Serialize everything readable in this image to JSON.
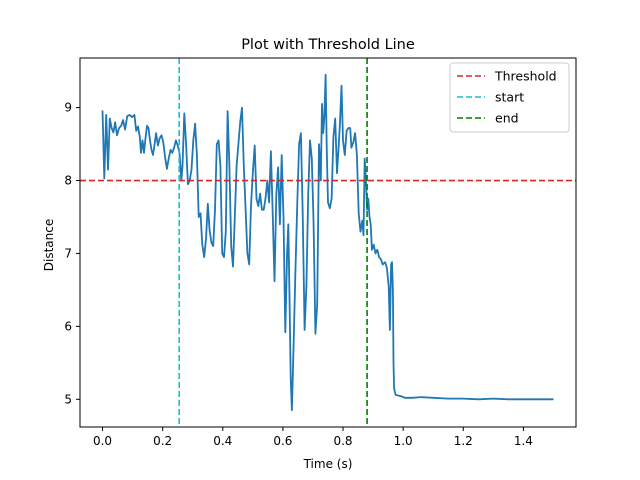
{
  "chart_data": {
    "type": "line",
    "title": "Plot with Threshold Line",
    "xlabel": "Time (s)",
    "ylabel": "Distance",
    "xlim": [
      -0.075,
      1.575
    ],
    "ylim": [
      4.62,
      9.68
    ],
    "xticks": [
      0.0,
      0.2,
      0.4,
      0.6,
      0.8,
      1.0,
      1.2,
      1.4
    ],
    "xtick_labels": [
      "0.0",
      "0.2",
      "0.4",
      "0.6",
      "0.8",
      "1.0",
      "1.2",
      "1.4"
    ],
    "yticks": [
      5,
      6,
      7,
      8,
      9
    ],
    "ytick_labels": [
      "5",
      "6",
      "7",
      "8",
      "9"
    ],
    "grid": false,
    "legend_position": "top-right",
    "series": [
      {
        "color": "#1f77b4",
        "style": "solid",
        "points": [
          [
            0.0,
            8.96
          ],
          [
            0.006,
            8.03
          ],
          [
            0.012,
            8.9
          ],
          [
            0.018,
            8.15
          ],
          [
            0.024,
            8.85
          ],
          [
            0.03,
            8.72
          ],
          [
            0.036,
            8.66
          ],
          [
            0.042,
            8.8
          ],
          [
            0.048,
            8.62
          ],
          [
            0.055,
            8.72
          ],
          [
            0.062,
            8.75
          ],
          [
            0.068,
            8.83
          ],
          [
            0.075,
            8.7
          ],
          [
            0.082,
            8.88
          ],
          [
            0.09,
            8.9
          ],
          [
            0.098,
            8.87
          ],
          [
            0.106,
            8.9
          ],
          [
            0.112,
            8.68
          ],
          [
            0.118,
            8.74
          ],
          [
            0.124,
            8.6
          ],
          [
            0.128,
            8.38
          ],
          [
            0.133,
            8.55
          ],
          [
            0.138,
            8.38
          ],
          [
            0.143,
            8.58
          ],
          [
            0.148,
            8.75
          ],
          [
            0.153,
            8.72
          ],
          [
            0.158,
            8.55
          ],
          [
            0.163,
            8.42
          ],
          [
            0.168,
            8.35
          ],
          [
            0.173,
            8.5
          ],
          [
            0.178,
            8.65
          ],
          [
            0.184,
            8.48
          ],
          [
            0.19,
            8.58
          ],
          [
            0.196,
            8.62
          ],
          [
            0.202,
            8.52
          ],
          [
            0.208,
            8.32
          ],
          [
            0.214,
            8.16
          ],
          [
            0.22,
            8.3
          ],
          [
            0.226,
            8.42
          ],
          [
            0.232,
            8.38
          ],
          [
            0.238,
            8.45
          ],
          [
            0.244,
            8.55
          ],
          [
            0.25,
            8.48
          ],
          [
            0.256,
            8.38
          ],
          [
            0.262,
            8.0
          ],
          [
            0.266,
            8.2
          ],
          [
            0.272,
            8.92
          ],
          [
            0.278,
            8.5
          ],
          [
            0.284,
            7.95
          ],
          [
            0.29,
            8.0
          ],
          [
            0.296,
            8.15
          ],
          [
            0.302,
            8.55
          ],
          [
            0.308,
            8.78
          ],
          [
            0.314,
            8.35
          ],
          [
            0.32,
            7.5
          ],
          [
            0.326,
            7.55
          ],
          [
            0.332,
            7.12
          ],
          [
            0.338,
            6.95
          ],
          [
            0.344,
            7.2
          ],
          [
            0.35,
            7.68
          ],
          [
            0.356,
            7.32
          ],
          [
            0.362,
            7.15
          ],
          [
            0.368,
            7.1
          ],
          [
            0.374,
            7.6
          ],
          [
            0.38,
            8.5
          ],
          [
            0.386,
            8.55
          ],
          [
            0.392,
            8.2
          ],
          [
            0.398,
            7.0
          ],
          [
            0.404,
            6.95
          ],
          [
            0.41,
            7.3
          ],
          [
            0.416,
            8.95
          ],
          [
            0.422,
            8.2
          ],
          [
            0.428,
            7.1
          ],
          [
            0.434,
            6.82
          ],
          [
            0.44,
            7.5
          ],
          [
            0.446,
            8.2
          ],
          [
            0.452,
            8.5
          ],
          [
            0.458,
            8.8
          ],
          [
            0.464,
            9.0
          ],
          [
            0.47,
            8.2
          ],
          [
            0.476,
            7.6
          ],
          [
            0.482,
            7.0
          ],
          [
            0.488,
            6.85
          ],
          [
            0.494,
            7.65
          ],
          [
            0.5,
            8.1
          ],
          [
            0.506,
            8.48
          ],
          [
            0.512,
            7.75
          ],
          [
            0.518,
            7.65
          ],
          [
            0.524,
            7.82
          ],
          [
            0.53,
            7.6
          ],
          [
            0.536,
            7.6
          ],
          [
            0.542,
            7.75
          ],
          [
            0.548,
            8.0
          ],
          [
            0.554,
            7.7
          ],
          [
            0.56,
            8.4
          ],
          [
            0.566,
            7.55
          ],
          [
            0.572,
            6.62
          ],
          [
            0.578,
            7.8
          ],
          [
            0.584,
            8.18
          ],
          [
            0.59,
            7.4
          ],
          [
            0.596,
            8.35
          ],
          [
            0.602,
            7.5
          ],
          [
            0.608,
            5.92
          ],
          [
            0.614,
            7.0
          ],
          [
            0.618,
            7.4
          ],
          [
            0.622,
            6.4
          ],
          [
            0.626,
            5.3
          ],
          [
            0.63,
            4.85
          ],
          [
            0.636,
            5.8
          ],
          [
            0.642,
            6.8
          ],
          [
            0.648,
            7.7
          ],
          [
            0.654,
            8.5
          ],
          [
            0.66,
            8.65
          ],
          [
            0.666,
            7.55
          ],
          [
            0.672,
            5.95
          ],
          [
            0.678,
            6.55
          ],
          [
            0.684,
            7.8
          ],
          [
            0.69,
            8.55
          ],
          [
            0.696,
            8.3
          ],
          [
            0.702,
            7.4
          ],
          [
            0.708,
            5.9
          ],
          [
            0.714,
            6.3
          ],
          [
            0.72,
            8.5
          ],
          [
            0.726,
            8.0
          ],
          [
            0.73,
            9.05
          ],
          [
            0.734,
            8.65
          ],
          [
            0.738,
            8.88
          ],
          [
            0.742,
            9.45
          ],
          [
            0.746,
            8.4
          ],
          [
            0.75,
            7.7
          ],
          [
            0.756,
            7.62
          ],
          [
            0.762,
            7.75
          ],
          [
            0.768,
            8.6
          ],
          [
            0.774,
            8.85
          ],
          [
            0.78,
            8.1
          ],
          [
            0.786,
            8.5
          ],
          [
            0.79,
            8.8
          ],
          [
            0.795,
            9.3
          ],
          [
            0.8,
            8.55
          ],
          [
            0.806,
            8.35
          ],
          [
            0.812,
            8.68
          ],
          [
            0.818,
            8.72
          ],
          [
            0.824,
            8.72
          ],
          [
            0.828,
            8.45
          ],
          [
            0.834,
            8.52
          ],
          [
            0.84,
            8.65
          ],
          [
            0.846,
            8.35
          ],
          [
            0.852,
            7.55
          ],
          [
            0.858,
            7.3
          ],
          [
            0.864,
            7.45
          ],
          [
            0.868,
            7.25
          ],
          [
            0.872,
            8.3
          ],
          [
            0.876,
            8.0
          ],
          [
            0.88,
            7.6
          ],
          [
            0.884,
            7.75
          ],
          [
            0.888,
            7.5
          ],
          [
            0.892,
            7.4
          ],
          [
            0.896,
            7.05
          ],
          [
            0.902,
            7.12
          ],
          [
            0.908,
            7.0
          ],
          [
            0.914,
            7.05
          ],
          [
            0.92,
            6.95
          ],
          [
            0.926,
            6.92
          ],
          [
            0.932,
            6.85
          ],
          [
            0.94,
            6.88
          ],
          [
            0.946,
            6.8
          ],
          [
            0.952,
            6.55
          ],
          [
            0.956,
            5.95
          ],
          [
            0.96,
            6.85
          ],
          [
            0.963,
            6.88
          ],
          [
            0.966,
            6.5
          ],
          [
            0.968,
            5.5
          ],
          [
            0.97,
            5.15
          ],
          [
            0.975,
            5.06
          ],
          [
            0.985,
            5.05
          ],
          [
            0.995,
            5.04
          ],
          [
            1.005,
            5.02
          ],
          [
            1.03,
            5.02
          ],
          [
            1.06,
            5.03
          ],
          [
            1.1,
            5.02
          ],
          [
            1.15,
            5.01
          ],
          [
            1.2,
            5.01
          ],
          [
            1.25,
            5.0
          ],
          [
            1.3,
            5.01
          ],
          [
            1.35,
            5.0
          ],
          [
            1.4,
            5.0
          ],
          [
            1.45,
            5.0
          ],
          [
            1.5,
            5.0
          ]
        ]
      }
    ],
    "reference_lines": [
      {
        "name": "Threshold",
        "orientation": "horizontal",
        "value": 8.0,
        "color": "#d62728",
        "style": "dashed"
      },
      {
        "name": "start",
        "orientation": "vertical",
        "value": 0.255,
        "color": "#17becf",
        "style": "dashed"
      },
      {
        "name": "end",
        "orientation": "vertical",
        "value": 0.88,
        "color": "#008000",
        "style": "dashed"
      }
    ]
  }
}
